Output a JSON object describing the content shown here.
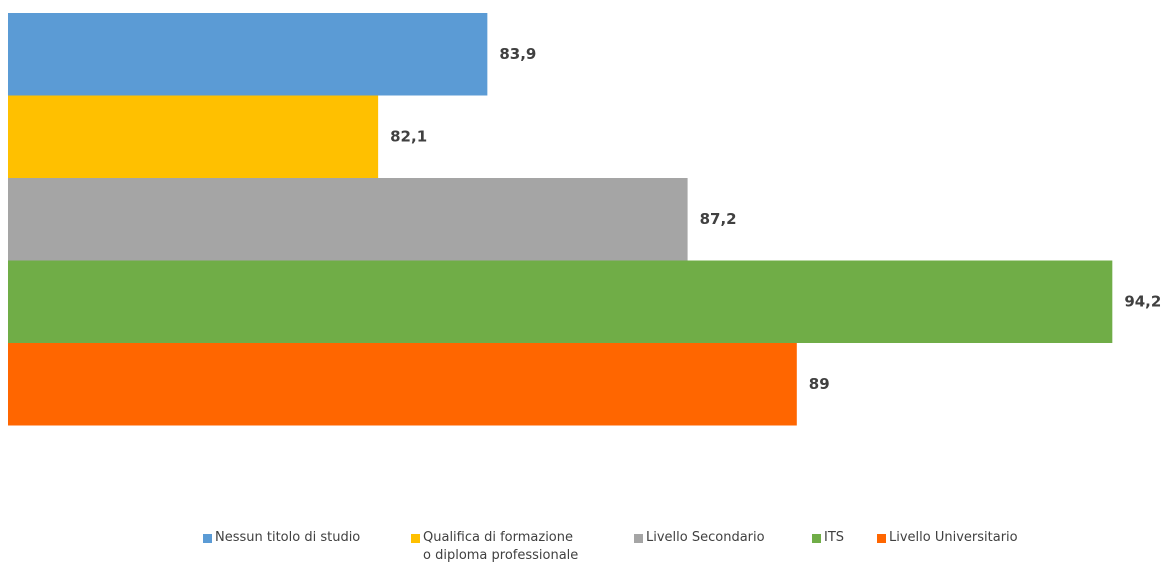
{
  "chart_data": {
    "type": "bar",
    "orientation": "horizontal",
    "xlim": [
      76,
      95.2
    ],
    "series": [
      {
        "name": "Nessun titolo di studio",
        "color": "#5b9bd5",
        "values": [
          83.9
        ],
        "value_labels": [
          "83,9"
        ]
      },
      {
        "name": "Qualifica di formazione\no diploma professionale",
        "color": "#ffc000",
        "values": [
          82.1
        ],
        "value_labels": [
          "82,1"
        ]
      },
      {
        "name": "Livello Secondario",
        "color": "#a5a5a5",
        "values": [
          87.2
        ],
        "value_labels": [
          "87,2"
        ]
      },
      {
        "name": "ITS",
        "color": "#70ad47",
        "values": [
          94.2
        ],
        "value_labels": [
          "94,2"
        ]
      },
      {
        "name": "Livello Universitario",
        "color": "#ff6600",
        "values": [
          89
        ]
      }
    ]
  }
}
